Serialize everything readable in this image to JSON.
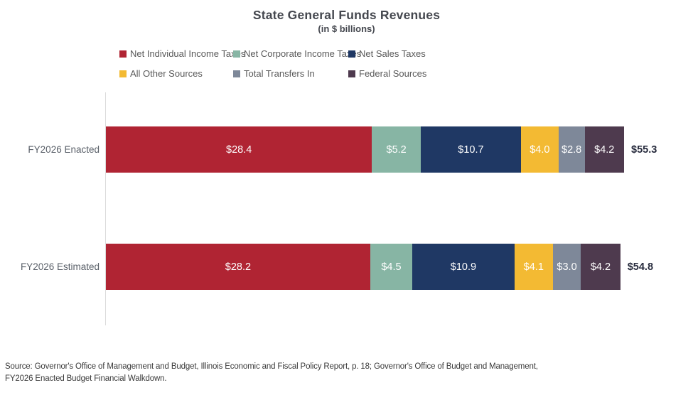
{
  "chart_data": {
    "type": "bar",
    "orientation": "horizontal",
    "stacked": true,
    "title": "State General Funds Revenues",
    "subtitle": "(in $ billions)",
    "categories": [
      "FY2026 Enacted",
      "FY2026 Estimated"
    ],
    "series": [
      {
        "name": "Net Individual Income Taxes",
        "color": "#B02433",
        "values": [
          28.4,
          28.2
        ]
      },
      {
        "name": "Net Corporate Income Taxes",
        "color": "#87B5A4",
        "values": [
          5.2,
          4.5
        ]
      },
      {
        "name": "Net Sales Taxes",
        "color": "#1F3864",
        "values": [
          10.7,
          10.9
        ]
      },
      {
        "name": "All Other Sources",
        "color": "#F3BA33",
        "values": [
          4.0,
          4.1
        ]
      },
      {
        "name": "Total Transfers In",
        "color": "#7E8899",
        "values": [
          2.8,
          3.0
        ]
      },
      {
        "name": "Federal Sources",
        "color": "#4E3A4E",
        "values": [
          4.2,
          4.2
        ]
      }
    ],
    "segment_labels": [
      [
        "$28.4",
        "$5.2",
        "$10.7",
        "$4.0",
        "$2.8",
        "$4.2"
      ],
      [
        "$28.2",
        "$4.5",
        "$10.9",
        "$4.1",
        "$3.0",
        "$4.2"
      ]
    ],
    "totals": [
      "$55.3",
      "$54.8"
    ],
    "xlim": [
      0,
      55.3
    ],
    "legend_position": "top",
    "grid": "off",
    "axis_line_color": "#DCDCDC"
  },
  "source": {
    "line1": "Source: Governor's Office of Management and Budget, Illinois Economic and Fiscal Policy Report, p. 18; Governor's Office of Budget and Management,",
    "line2": "FY2026 Enacted Budget Financial Walkdown."
  }
}
